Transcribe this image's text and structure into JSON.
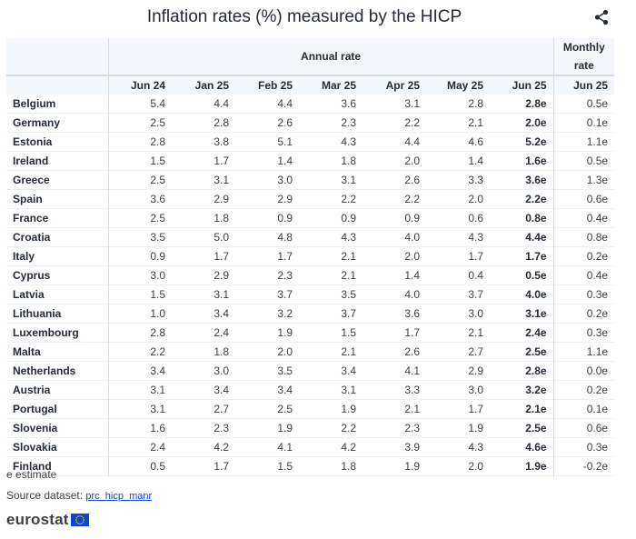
{
  "title": "Inflation rates (%) measured by the HICP",
  "share_icon": "share-icon",
  "header": {
    "group_label": "Annual rate",
    "monthly_label": "Monthly rate",
    "columns": [
      "Jun 24",
      "Jan 25",
      "Feb 25",
      "Mar 25",
      "Apr 25",
      "May 25",
      "Jun 25",
      "Jun 25"
    ]
  },
  "chart_data": {
    "type": "table",
    "title": "Inflation rates (%) measured by the HICP",
    "column_groups": [
      {
        "label": "Annual rate",
        "columns": [
          "Jun 24",
          "Jan 25",
          "Feb 25",
          "Mar 25",
          "Apr 25",
          "May 25",
          "Jun 25"
        ]
      },
      {
        "label": "Monthly rate",
        "columns": [
          "Jun 25"
        ]
      }
    ],
    "rows": [
      {
        "country": "Belgium",
        "values": [
          "5.4",
          "4.4",
          "4.4",
          "3.6",
          "3.1",
          "2.8",
          "2.8e",
          "0.5e"
        ]
      },
      {
        "country": "Germany",
        "values": [
          "2.5",
          "2.8",
          "2.6",
          "2.3",
          "2.2",
          "2.1",
          "2.0e",
          "0.1e"
        ]
      },
      {
        "country": "Estonia",
        "values": [
          "2.8",
          "3.8",
          "5.1",
          "4.3",
          "4.4",
          "4.6",
          "5.2e",
          "1.1e"
        ]
      },
      {
        "country": "Ireland",
        "values": [
          "1.5",
          "1.7",
          "1.4",
          "1.8",
          "2.0",
          "1.4",
          "1.6e",
          "0.5e"
        ]
      },
      {
        "country": "Greece",
        "values": [
          "2.5",
          "3.1",
          "3.0",
          "3.1",
          "2.6",
          "3.3",
          "3.6e",
          "1.3e"
        ]
      },
      {
        "country": "Spain",
        "values": [
          "3.6",
          "2.9",
          "2.9",
          "2.2",
          "2.2",
          "2.0",
          "2.2e",
          "0.6e"
        ]
      },
      {
        "country": "France",
        "values": [
          "2.5",
          "1.8",
          "0.9",
          "0.9",
          "0.9",
          "0.6",
          "0.8e",
          "0.4e"
        ]
      },
      {
        "country": "Croatia",
        "values": [
          "3.5",
          "5.0",
          "4.8",
          "4.3",
          "4.0",
          "4.3",
          "4.4e",
          "0.8e"
        ]
      },
      {
        "country": "Italy",
        "values": [
          "0.9",
          "1.7",
          "1.7",
          "2.1",
          "2.0",
          "1.7",
          "1.7e",
          "0.2e"
        ]
      },
      {
        "country": "Cyprus",
        "values": [
          "3.0",
          "2.9",
          "2.3",
          "2.1",
          "1.4",
          "0.4",
          "0.5e",
          "0.4e"
        ]
      },
      {
        "country": "Latvia",
        "values": [
          "1.5",
          "3.1",
          "3.7",
          "3.5",
          "4.0",
          "3.7",
          "4.0e",
          "0.3e"
        ]
      },
      {
        "country": "Lithuania",
        "values": [
          "1.0",
          "3.4",
          "3.2",
          "3.7",
          "3.6",
          "3.0",
          "3.1e",
          "0.2e"
        ]
      },
      {
        "country": "Luxembourg",
        "values": [
          "2.8",
          "2.4",
          "1.9",
          "1.5",
          "1.7",
          "2.1",
          "2.4e",
          "0.3e"
        ]
      },
      {
        "country": "Malta",
        "values": [
          "2.2",
          "1.8",
          "2.0",
          "2.1",
          "2.6",
          "2.7",
          "2.5e",
          "1.1e"
        ]
      },
      {
        "country": "Netherlands",
        "values": [
          "3.4",
          "3.0",
          "3.5",
          "3.4",
          "4.1",
          "2.9",
          "2.8e",
          "0.0e"
        ]
      },
      {
        "country": "Austria",
        "values": [
          "3.1",
          "3.4",
          "3.4",
          "3.1",
          "3.3",
          "3.0",
          "3.2e",
          "0.2e"
        ]
      },
      {
        "country": "Portugal",
        "values": [
          "3.1",
          "2.7",
          "2.5",
          "1.9",
          "2.1",
          "1.7",
          "2.1e",
          "0.1e"
        ]
      },
      {
        "country": "Slovenia",
        "values": [
          "1.6",
          "2.3",
          "1.9",
          "2.2",
          "2.3",
          "1.9",
          "2.5e",
          "0.6e"
        ]
      },
      {
        "country": "Slovakia",
        "values": [
          "2.4",
          "4.2",
          "4.1",
          "4.2",
          "3.9",
          "4.3",
          "4.6e",
          "0.3e"
        ]
      },
      {
        "country": "Finland",
        "values": [
          "0.5",
          "1.7",
          "1.5",
          "1.8",
          "1.9",
          "2.0",
          "1.9e",
          "-0.2e"
        ]
      }
    ]
  },
  "footnote": "e estimate",
  "source": {
    "label": "Source dataset:",
    "link": "prc_hicp_manr"
  },
  "logo": {
    "text": "eurostat",
    "icon": "eu-flag-icon"
  },
  "colors": {
    "header_bg": "#f4f8fd",
    "link": "#0e47cb",
    "flag_blue": "#0e47cb",
    "flag_star": "#ffd617"
  }
}
